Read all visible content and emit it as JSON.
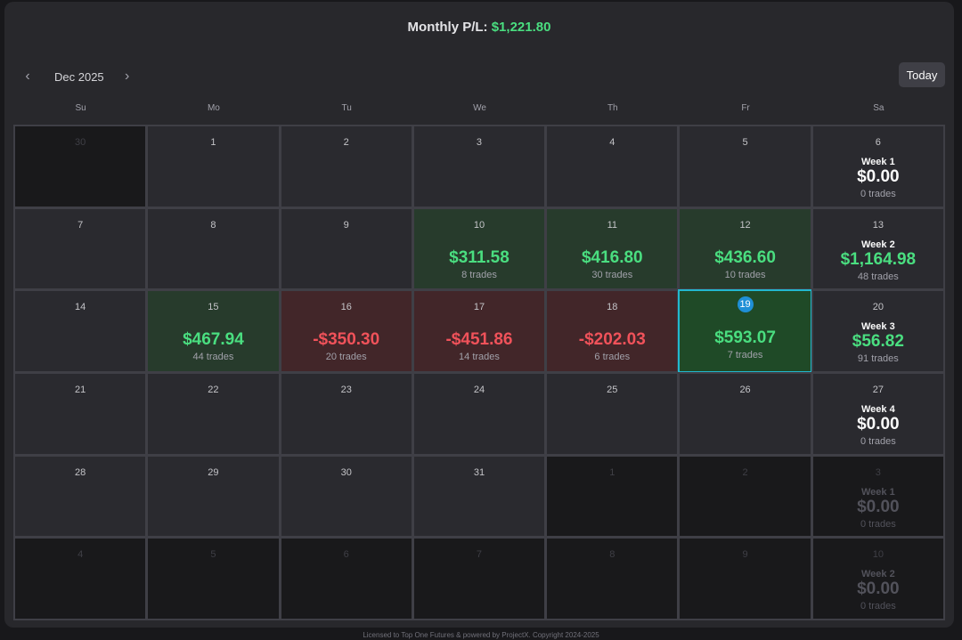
{
  "header": {
    "monthly_label": "Monthly P/L:",
    "monthly_value": "$1,221.80"
  },
  "nav": {
    "prev_icon": "chevron-left-icon",
    "next_icon": "chevron-right-icon",
    "month": "Dec 2025",
    "today_label": "Today"
  },
  "weekdays": [
    "Su",
    "Mo",
    "Tu",
    "We",
    "Th",
    "Fr",
    "Sa"
  ],
  "colors": {
    "positive": "#4ade80",
    "negative": "#f0525a",
    "today_ring": "#22b8cf"
  },
  "cells": [
    {
      "day": "30",
      "out": true
    },
    {
      "day": "1"
    },
    {
      "day": "2"
    },
    {
      "day": "3"
    },
    {
      "day": "4"
    },
    {
      "day": "5"
    },
    {
      "day": "6",
      "week": "Week 1",
      "week_pl": "$0.00",
      "trades": "0 trades"
    },
    {
      "day": "7"
    },
    {
      "day": "8"
    },
    {
      "day": "9"
    },
    {
      "day": "10",
      "pl": "$311.58",
      "trades": "8 trades",
      "status": "pos"
    },
    {
      "day": "11",
      "pl": "$416.80",
      "trades": "30 trades",
      "status": "pos"
    },
    {
      "day": "12",
      "pl": "$436.60",
      "trades": "10 trades",
      "status": "pos"
    },
    {
      "day": "13",
      "week": "Week 2",
      "week_pl": "$1,164.98",
      "trades": "48 trades",
      "week_status": "pos"
    },
    {
      "day": "14"
    },
    {
      "day": "15",
      "pl": "$467.94",
      "trades": "44 trades",
      "status": "pos"
    },
    {
      "day": "16",
      "pl": "-$350.30",
      "trades": "20 trades",
      "status": "neg"
    },
    {
      "day": "17",
      "pl": "-$451.86",
      "trades": "14 trades",
      "status": "neg"
    },
    {
      "day": "18",
      "pl": "-$202.03",
      "trades": "6 trades",
      "status": "neg"
    },
    {
      "day": "19",
      "pl": "$593.07",
      "trades": "7 trades",
      "status": "pos",
      "today": true
    },
    {
      "day": "20",
      "week": "Week 3",
      "week_pl": "$56.82",
      "trades": "91 trades",
      "week_status": "pos"
    },
    {
      "day": "21"
    },
    {
      "day": "22"
    },
    {
      "day": "23"
    },
    {
      "day": "24"
    },
    {
      "day": "25"
    },
    {
      "day": "26"
    },
    {
      "day": "27",
      "week": "Week 4",
      "week_pl": "$0.00",
      "trades": "0 trades"
    },
    {
      "day": "28"
    },
    {
      "day": "29"
    },
    {
      "day": "30"
    },
    {
      "day": "31"
    },
    {
      "day": "1",
      "out": true
    },
    {
      "day": "2",
      "out": true
    },
    {
      "day": "3",
      "out": true,
      "week": "Week 1",
      "week_pl": "$0.00",
      "trades": "0 trades"
    },
    {
      "day": "4",
      "out": true
    },
    {
      "day": "5",
      "out": true
    },
    {
      "day": "6",
      "out": true
    },
    {
      "day": "7",
      "out": true
    },
    {
      "day": "8",
      "out": true
    },
    {
      "day": "9",
      "out": true
    },
    {
      "day": "10",
      "out": true,
      "week": "Week 2",
      "week_pl": "$0.00",
      "trades": "0 trades"
    }
  ],
  "footer": "Licensed to Top One Futures & powered by ProjectX. Copyright 2024-2025"
}
